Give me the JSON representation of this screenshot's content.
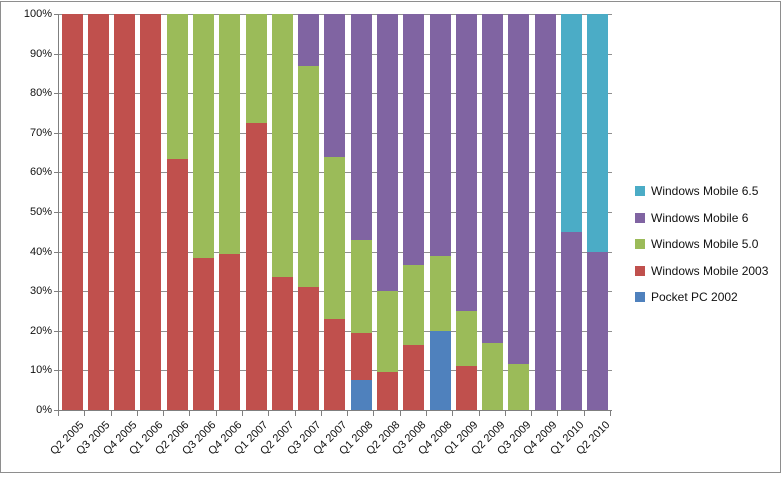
{
  "chart_data": {
    "type": "bar",
    "stacked": true,
    "title": "",
    "xlabel": "",
    "ylabel": "",
    "ylim": [
      0,
      100
    ],
    "grid": true,
    "legend_position": "right",
    "y_ticks": [
      "0%",
      "10%",
      "20%",
      "30%",
      "40%",
      "50%",
      "60%",
      "70%",
      "80%",
      "90%",
      "100%"
    ],
    "categories": [
      "Q2 2005",
      "Q3 2005",
      "Q4 2005",
      "Q1 2006",
      "Q2 2006",
      "Q3 2006",
      "Q4 2006",
      "Q1 2007",
      "Q2 2007",
      "Q3 2007",
      "Q4 2007",
      "Q1 2008",
      "Q2 2008",
      "Q3 2008",
      "Q4 2008",
      "Q1 2009",
      "Q2 2009",
      "Q3 2009",
      "Q4 2009",
      "Q1 2010",
      "Q2 2010"
    ],
    "series": [
      {
        "name": "Pocket PC 2002",
        "color": "#4F81BD",
        "values": [
          0,
          0,
          0,
          0,
          0,
          0,
          0,
          0,
          0,
          0,
          0,
          7.5,
          0,
          0,
          20,
          0,
          0,
          0,
          0,
          0,
          0
        ]
      },
      {
        "name": "Windows Mobile 2003",
        "color": "#C0504D",
        "values": [
          100,
          100,
          100,
          100,
          63.5,
          38.5,
          39.5,
          72.5,
          33.5,
          31,
          23,
          12,
          9.5,
          16.5,
          0,
          11,
          0,
          0,
          0,
          0,
          0
        ]
      },
      {
        "name": "Windows Mobile 5.0",
        "color": "#9BBB59",
        "values": [
          0,
          0,
          0,
          0,
          36.5,
          61.5,
          60.5,
          27.5,
          66.5,
          56,
          41,
          23.5,
          20.5,
          20,
          19,
          14,
          17,
          11.5,
          0,
          0,
          0
        ]
      },
      {
        "name": "Windows Mobile 6",
        "color": "#8064A2",
        "values": [
          0,
          0,
          0,
          0,
          0,
          0,
          0,
          0,
          0,
          13,
          36,
          57,
          70,
          63.5,
          61,
          75,
          83,
          88.5,
          100,
          45,
          40
        ]
      },
      {
        "name": "Windows Mobile 6.5",
        "color": "#4BACC6",
        "values": [
          0,
          0,
          0,
          0,
          0,
          0,
          0,
          0,
          0,
          0,
          0,
          0,
          0,
          0,
          0,
          0,
          0,
          0,
          0,
          55,
          60
        ]
      }
    ],
    "legend_order_top_to_bottom": [
      "Windows Mobile 6.5",
      "Windows Mobile 6",
      "Windows Mobile 5.0",
      "Windows Mobile 2003",
      "Pocket PC 2002"
    ],
    "colors": {
      "axis": "#7f7f7f",
      "gridline": "#8f8f8f",
      "frame_border": "#8e8e8e",
      "background": "#ffffff"
    }
  }
}
